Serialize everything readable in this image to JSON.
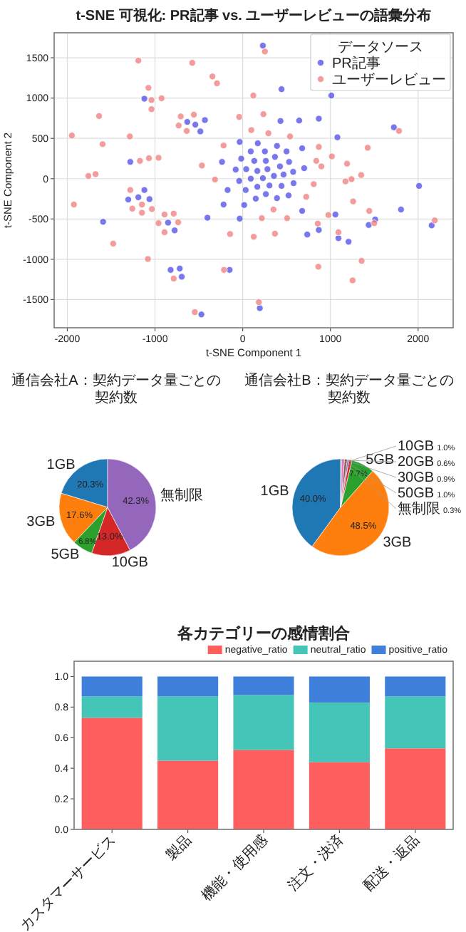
{
  "chart_data": [
    {
      "type": "scatter",
      "title": "t-SNE 可視化: PR記事 vs. ユーザーレビューの語彙分布",
      "xlabel": "t-SNE Component 1",
      "ylabel": "t-SNE Component 2",
      "legend_title": "データソース",
      "legend": "top right",
      "grid": true,
      "marker": "circle",
      "xlim": [
        -2150,
        2400
      ],
      "ylim": [
        -1850,
        1810
      ],
      "xticks": [
        -2000,
        -1000,
        0,
        1000,
        2000
      ],
      "yticks": [
        -1500,
        -1000,
        -500,
        0,
        500,
        1000,
        1500
      ],
      "series": [
        {
          "name": "PR記事",
          "color": "#4b4be6",
          "x": [
            230,
            443,
            1011,
            -1121,
            431,
            644,
            868,
            -431,
            -632,
            -540,
            -483,
            1724,
            1080,
            -34,
            172,
            92,
            253,
            391,
            500,
            678,
            -236,
            -17,
            132,
            264,
            368,
            529,
            -80,
            40,
            167,
            282,
            425,
            575,
            701,
            92,
            230,
            356,
            466,
            -40,
            34,
            167,
            305,
            443,
            580,
            -172,
            149,
            264,
            391,
            523,
            -218,
            17,
            678,
            -34,
            -402,
            1057,
            1511,
            1805,
            2011,
            2155,
            1437,
            868,
            736,
            1092,
            1207,
            -776,
            -851,
            -1592,
            -1305,
            -1190,
            -1121,
            -1063,
            -1282,
            -822,
            -718,
            -695,
            -149,
            -471,
            195
          ],
          "values": [
            1651,
            1110,
            1031,
            992,
            715,
            721,
            744,
            727,
            704,
            670,
            586,
            637,
            513,
            456,
            439,
            338,
            338,
            406,
            338,
            377,
            208,
            248,
            220,
            220,
            270,
            208,
            113,
            118,
            96,
            118,
            152,
            85,
            130,
            0,
            6,
            34,
            51,
            -28,
            -141,
            -101,
            -85,
            -90,
            -56,
            -141,
            -248,
            -192,
            -242,
            -208,
            -321,
            -327,
            -400,
            -496,
            -485,
            -445,
            -507,
            -383,
            -90,
            -580,
            -575,
            -637,
            -693,
            -738,
            -783,
            -642,
            -546,
            -535,
            -259,
            -231,
            -141,
            -254,
            208,
            -1132,
            -1115,
            -1217,
            -1132,
            -1685,
            -1606
          ]
        },
        {
          "name": "ユーザーレビュー",
          "color": "#ee7b7b",
          "x": [
            253,
            -1190,
            -575,
            -345,
            -293,
            -1075,
            121,
            -1040,
            -925,
            -1040,
            -1638,
            -707,
            -557,
            -730,
            -638,
            -40,
            236,
            98,
            293,
            540,
            -1287,
            -1598,
            -1948,
            -218,
            -1172,
            -1069,
            -960,
            -1282,
            -1759,
            -1678,
            -1925,
            -316,
            -465,
            868,
            839,
            897,
            1017,
            1190,
            810,
            1172,
            1241,
            1351,
            1425,
            1782,
            1259,
            1443,
            1500,
            2190,
            977,
            1092,
            1356,
            1253,
            862,
            856,
            506,
            351,
            724,
            218,
            368,
            126,
            -144,
            -213,
            184,
            -546,
            -787,
            -1081,
            -1477,
            -1259,
            -1149,
            -1149,
            -1035,
            -960,
            -891,
            -891,
            -787,
            -736
          ],
          "values": [
            1577,
            1465,
            1437,
            1268,
            1183,
            1127,
            1031,
            975,
            997,
            862,
            777,
            772,
            794,
            659,
            592,
            766,
            800,
            603,
            563,
            524,
            524,
            428,
            535,
            411,
            220,
            254,
            259,
            -141,
            34,
            56,
            -321,
            -11,
            163,
            394,
            220,
            152,
            276,
            186,
            -68,
            -34,
            -6,
            45,
            383,
            592,
            -282,
            -400,
            -552,
            -518,
            -451,
            -665,
            -1020,
            -1262,
            -1093,
            -558,
            -490,
            -383,
            -225,
            -490,
            -682,
            -721,
            -687,
            -1132,
            -1532,
            -1656,
            -1239,
            -997,
            -806,
            -372,
            -321,
            -423,
            -377,
            -552,
            -445,
            -665,
            -434,
            -541
          ]
        }
      ]
    },
    {
      "type": "pie",
      "title": "通信会社A：契約データ量ごとの契約数",
      "categories": [
        "1GB",
        "3GB",
        "5GB",
        "10GB",
        "無制限"
      ],
      "values": [
        20.3,
        17.6,
        6.8,
        13.0,
        42.3
      ],
      "colors": [
        "#1f77b4",
        "#ff7f0e",
        "#2ca02c",
        "#d62728",
        "#9467bd"
      ],
      "value_labels": [
        "20.3%",
        "17.6%",
        "6.8%",
        "13.0%",
        "42.3%"
      ]
    },
    {
      "type": "pie",
      "title": "通信会社B：契約データ量ごとの契約数",
      "categories": [
        "1GB",
        "3GB",
        "5GB",
        "10GB",
        "20GB",
        "30GB",
        "50GB",
        "無制限"
      ],
      "values": [
        40.0,
        48.5,
        7.7,
        1.0,
        0.6,
        0.9,
        1.0,
        0.3
      ],
      "colors": [
        "#1f77b4",
        "#ff7f0e",
        "#2ca02c",
        "#d62728",
        "#9467bd",
        "#8c564b",
        "#e377c2",
        "#7f7f7f"
      ],
      "value_labels": [
        "40.0%",
        "48.5%",
        "7.7%",
        "1.0%",
        "0.6%",
        "0.9%",
        "1.0%",
        "0.3%"
      ]
    },
    {
      "type": "bar",
      "stacked": true,
      "title": "各カテゴリーの感情割合",
      "categories": [
        "カスタマーサービス",
        "製品",
        "機能・使用感",
        "注文・決済",
        "配送・返品"
      ],
      "ylim": [
        0,
        1.1
      ],
      "yticks": [
        {
          "value": 0,
          "label": "0.0"
        },
        {
          "value": 0.2,
          "label": "0.2"
        },
        {
          "value": 0.4,
          "label": "0.4"
        },
        {
          "value": 0.6,
          "label": "0.6"
        },
        {
          "value": 0.8,
          "label": "0.8"
        },
        {
          "value": 1,
          "label": "1.0"
        }
      ],
      "legend": "top right",
      "series": [
        {
          "name": "negative_ratio",
          "color": "#ff5e5e",
          "values": [
            0.73,
            0.45,
            0.52,
            0.44,
            0.53
          ]
        },
        {
          "name": "neutral_ratio",
          "color": "#45c4b8",
          "values": [
            0.14,
            0.42,
            0.36,
            0.39,
            0.34
          ]
        },
        {
          "name": "positive_ratio",
          "color": "#3f7fdc",
          "values": [
            0.13,
            0.13,
            0.12,
            0.17,
            0.13
          ]
        }
      ]
    }
  ]
}
